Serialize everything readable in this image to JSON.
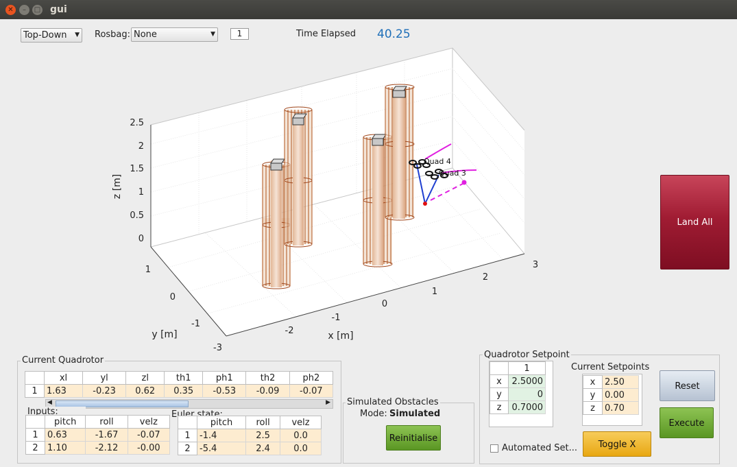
{
  "window": {
    "title": "gui"
  },
  "toolbar": {
    "view_select": "Top-Down",
    "rosbag_label": "Rosbag:",
    "rosbag_select": "None",
    "index_value": "1",
    "time_label": "Time Elapsed",
    "time_value": "40.25"
  },
  "plot": {
    "zlabel": "z [m]",
    "ylabel": "y [m]",
    "xlabel": "x [m]",
    "zticks": [
      "2.5",
      "2",
      "1.5",
      "1",
      "0.5",
      "0"
    ],
    "yticks": [
      "1",
      "0",
      "-1",
      "-2",
      "-3"
    ],
    "xticks": [
      "-2",
      "-1",
      "0",
      "1",
      "2",
      "3"
    ],
    "quad_labels": [
      "Quad 4",
      "Quad 3"
    ]
  },
  "land_all_label": "Land All",
  "current_quadrotor": {
    "title": "Current Quadrotor",
    "columns": [
      "xl",
      "yl",
      "zl",
      "th1",
      "ph1",
      "th2",
      "ph2"
    ],
    "row_label": "1",
    "values": [
      "1.63",
      "-0.23",
      "0.62",
      "0.35",
      "-0.53",
      "-0.09",
      "-0.07"
    ]
  },
  "inputs": {
    "title": "Inputs:",
    "columns": [
      "pitch",
      "roll",
      "velz"
    ],
    "rows": [
      {
        "label": "1",
        "values": [
          "0.63",
          "-1.67",
          "-0.07"
        ]
      },
      {
        "label": "2",
        "values": [
          "1.10",
          "-2.12",
          "-0.00"
        ]
      }
    ]
  },
  "euler": {
    "title": "Euler state:",
    "columns": [
      "pitch",
      "roll",
      "velz"
    ],
    "rows": [
      {
        "label": "1",
        "values": [
          "-1.4",
          "2.5",
          "0.0"
        ]
      },
      {
        "label": "2",
        "values": [
          "-5.4",
          "2.4",
          "0.0"
        ]
      }
    ]
  },
  "obstacles": {
    "title": "Simulated Obstacles",
    "mode_label": "Mode:",
    "mode_value": "Simulated",
    "reinit_label": "Reinitialise"
  },
  "setpoint": {
    "title": "Quadrotor Setpoint",
    "col": "1",
    "rows": [
      {
        "label": "x",
        "value": "2.5000"
      },
      {
        "label": "y",
        "value": "0"
      },
      {
        "label": "z",
        "value": "0.7000"
      }
    ],
    "current_title": "Current Setpoints",
    "current_rows": [
      {
        "label": "x",
        "value": "2.50"
      },
      {
        "label": "y",
        "value": "0.00"
      },
      {
        "label": "z",
        "value": "0.70"
      }
    ],
    "automated_label": "Automated Set...",
    "reset_label": "Reset",
    "execute_label": "Execute",
    "toggle_label": "Toggle X"
  }
}
